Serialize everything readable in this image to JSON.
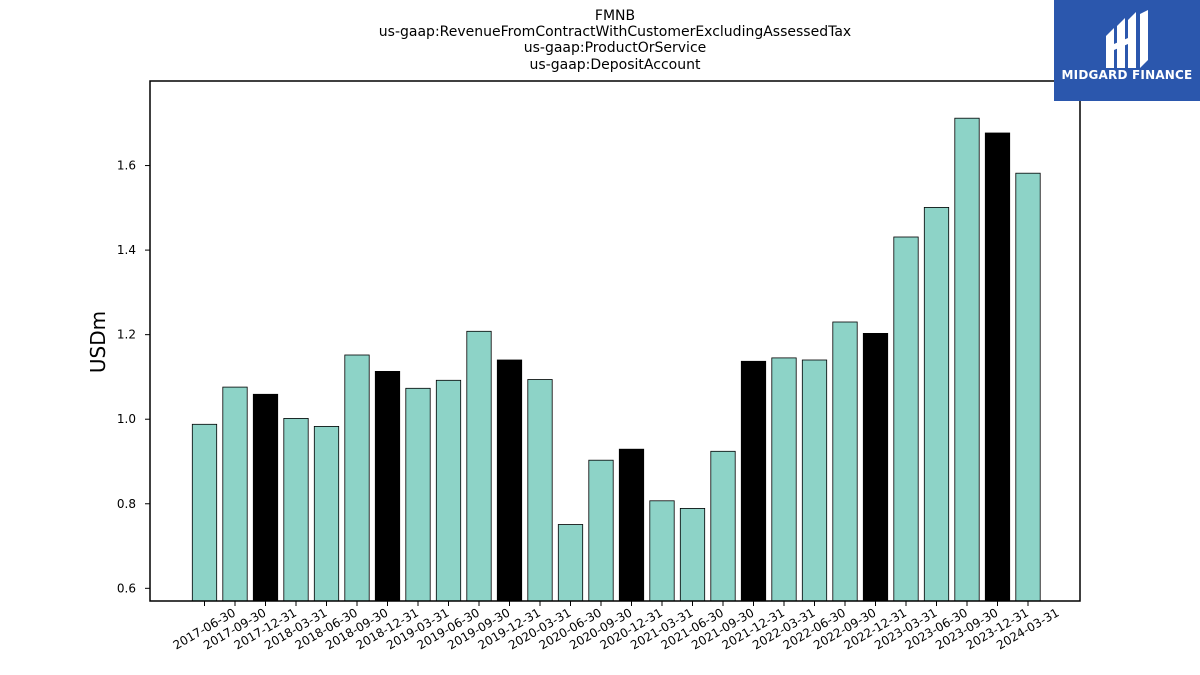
{
  "chart_data": {
    "type": "bar",
    "title_lines": [
      "FMNB",
      "us-gaap:RevenueFromContractWithCustomerExcludingAssessedTax",
      "us-gaap:ProductOrService",
      "us-gaap:DepositAccount"
    ],
    "ylabel": "USDm",
    "xlabel": "",
    "ylim": [
      0.57,
      1.8
    ],
    "yticks": [
      0.6,
      0.8,
      1.0,
      1.2,
      1.4,
      1.6
    ],
    "grid": false,
    "categories": [
      "2017-06-30",
      "2017-09-30",
      "2017-12-31",
      "2018-03-31",
      "2018-06-30",
      "2018-09-30",
      "2018-12-31",
      "2019-03-31",
      "2019-06-30",
      "2019-09-30",
      "2019-12-31",
      "2020-03-31",
      "2020-06-30",
      "2020-09-30",
      "2020-12-31",
      "2021-03-31",
      "2021-06-30",
      "2021-09-30",
      "2021-12-31",
      "2022-03-31",
      "2022-06-30",
      "2022-09-30",
      "2022-12-31",
      "2023-03-31",
      "2023-06-30",
      "2023-09-30",
      "2023-12-31",
      "2024-03-31"
    ],
    "values": [
      0.988,
      1.076,
      1.059,
      1.002,
      0.983,
      1.152,
      1.113,
      1.073,
      1.092,
      1.208,
      1.14,
      1.094,
      0.751,
      0.903,
      0.929,
      0.807,
      0.789,
      0.924,
      1.137,
      1.145,
      1.14,
      1.23,
      1.203,
      1.431,
      1.501,
      1.712,
      1.677,
      1.582
    ],
    "highlight": [
      false,
      false,
      true,
      false,
      false,
      false,
      true,
      false,
      false,
      false,
      true,
      false,
      false,
      false,
      true,
      false,
      false,
      false,
      true,
      false,
      false,
      false,
      true,
      false,
      false,
      false,
      true,
      false
    ],
    "colors": {
      "normal": "#8dd3c7",
      "highlight": "#000000",
      "edge": "#000000"
    }
  },
  "logo": {
    "text": "MIDGARD FINANCE",
    "background": "#2b57ad"
  }
}
